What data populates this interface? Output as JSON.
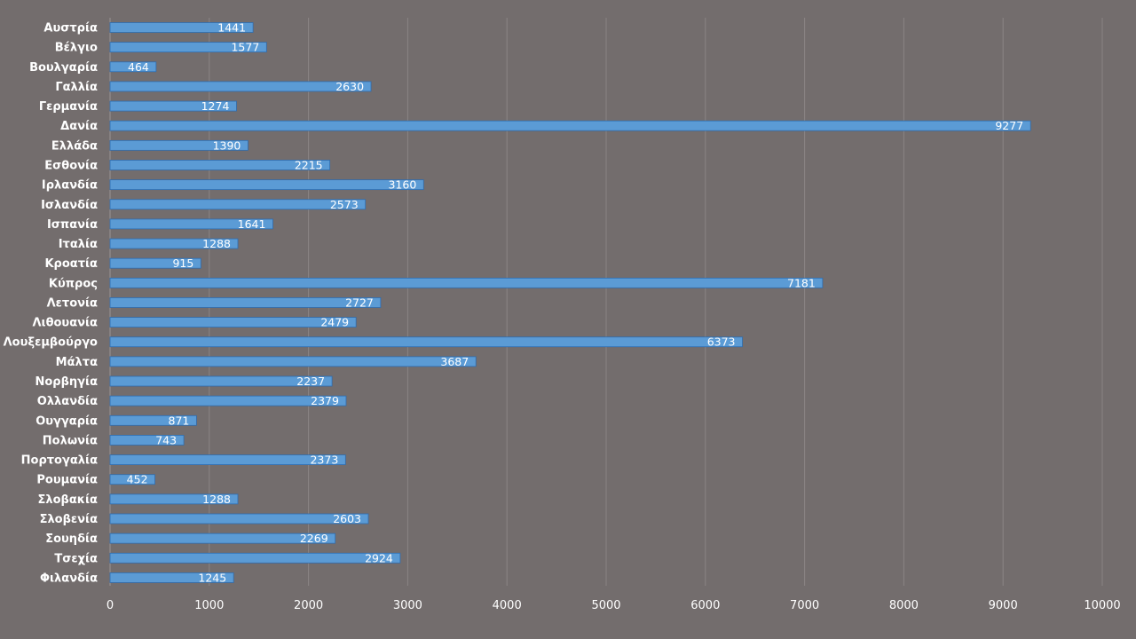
{
  "chart_data": {
    "type": "bar",
    "orientation": "horizontal",
    "title": "",
    "xlabel": "",
    "ylabel": "",
    "xlim": [
      0,
      10000
    ],
    "x_ticks": [
      0,
      1000,
      2000,
      3000,
      4000,
      5000,
      6000,
      7000,
      8000,
      9000,
      10000
    ],
    "grid": true,
    "legend": "none",
    "bar_color": "#5b9bd5",
    "bar_edge_color": "#2e6db0",
    "background_color": "#736d6d",
    "text_color": "#ffffff",
    "categories": [
      "Αυστρία",
      "Βέλγιο",
      "Βουλγαρία",
      "Γαλλία",
      "Γερμανία",
      "Δανία",
      "Ελλάδα",
      "Εσθονία",
      "Ιρλανδία",
      "Ισλανδία",
      "Ισπανία",
      "Ιταλία",
      "Κροατία",
      "Κύπρος",
      "Λετονία",
      "Λιθουανία",
      "Λουξεμβούργο",
      "Μάλτα",
      "Νορβηγία",
      "Ολλανδία",
      "Ουγγαρία",
      "Πολωνία",
      "Πορτογαλία",
      "Ρουμανία",
      "Σλοβακία",
      "Σλοβενία",
      "Σουηδία",
      "Τσεχία",
      "Φιλανδία"
    ],
    "values": [
      1441,
      1577,
      464,
      2630,
      1274,
      9277,
      1390,
      2215,
      3160,
      2573,
      1641,
      1288,
      915,
      7181,
      2727,
      2479,
      6373,
      3687,
      2237,
      2379,
      871,
      743,
      2373,
      452,
      1288,
      2603,
      2269,
      2924,
      1245
    ]
  }
}
